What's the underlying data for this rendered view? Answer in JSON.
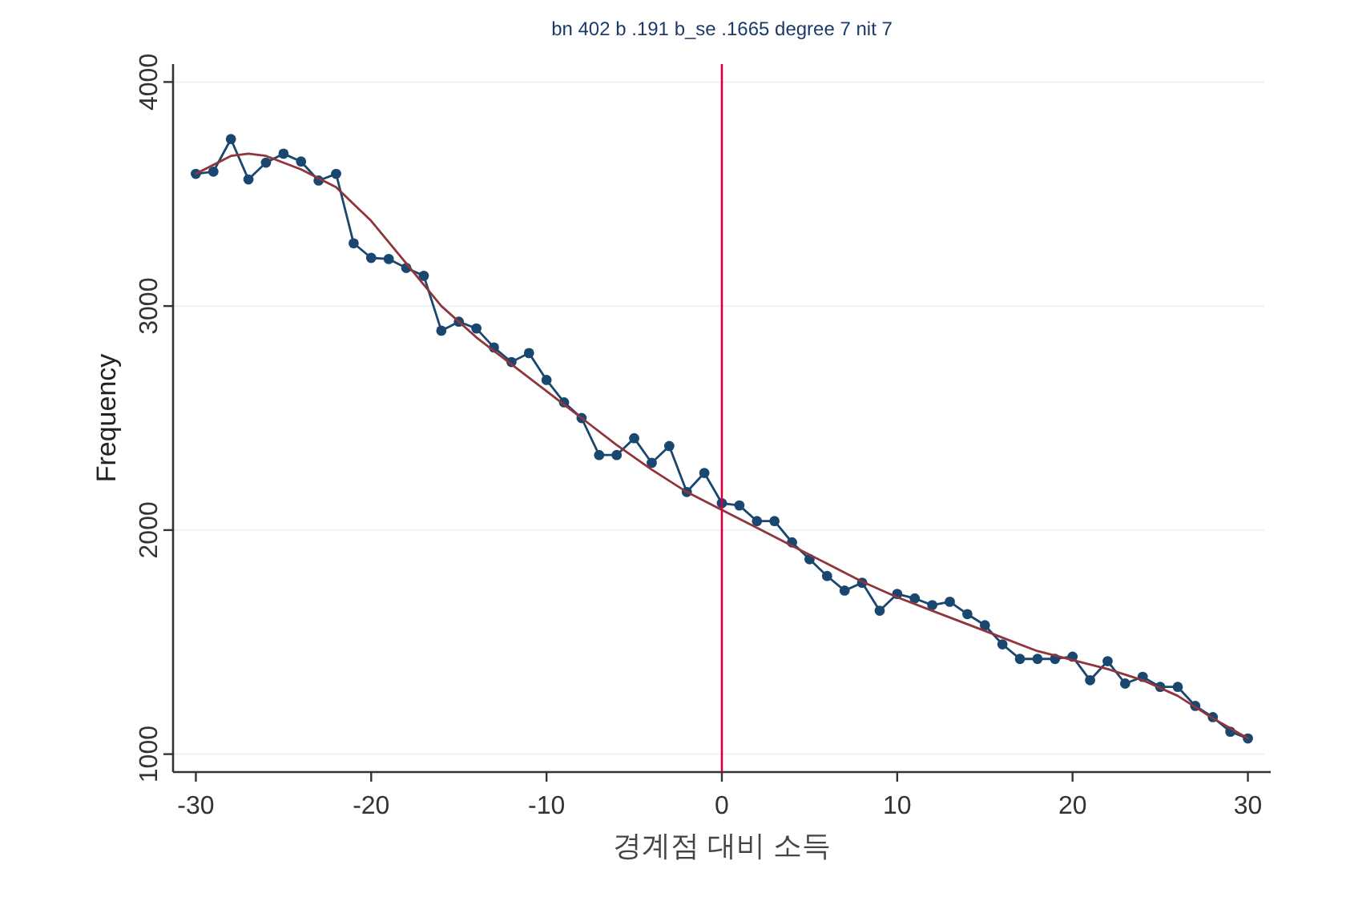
{
  "chart_data": {
    "type": "line",
    "title": "bn 402 b .191 b_se .1665 degree 7 nit 7",
    "xlabel": "경계점 대비 소득",
    "ylabel": "Frequency",
    "x": [
      -30,
      -29,
      -28,
      -27,
      -26,
      -25,
      -24,
      -23,
      -22,
      -21,
      -20,
      -19,
      -18,
      -17,
      -16,
      -15,
      -14,
      -13,
      -12,
      -11,
      -10,
      -9,
      -8,
      -7,
      -6,
      -5,
      -4,
      -3,
      -2,
      -1,
      0,
      1,
      2,
      3,
      4,
      5,
      6,
      7,
      8,
      9,
      10,
      11,
      12,
      13,
      14,
      15,
      16,
      17,
      18,
      19,
      20,
      21,
      22,
      23,
      24,
      25,
      26,
      27,
      28,
      29,
      30
    ],
    "series": [
      {
        "color": "#1a476f",
        "marker": "circle",
        "values": [
          3590,
          3600,
          3745,
          3565,
          3640,
          3680,
          3645,
          3560,
          3590,
          3280,
          3215,
          3210,
          3170,
          3135,
          2890,
          2930,
          2900,
          2815,
          2750,
          2790,
          2670,
          2570,
          2500,
          2335,
          2335,
          2410,
          2300,
          2375,
          2170,
          2255,
          2120,
          2110,
          2040,
          2040,
          1945,
          1870,
          1795,
          1730,
          1765,
          1640,
          1715,
          1695,
          1665,
          1680,
          1625,
          1575,
          1490,
          1425,
          1425,
          1425,
          1435,
          1330,
          1415,
          1315,
          1345,
          1300,
          1300,
          1215,
          1165,
          1100,
          1070
        ]
      },
      {
        "type": "line",
        "color": "#90353b",
        "marker": "none",
        "x": [
          -30,
          -28,
          -27,
          -26,
          -24,
          -22,
          -20,
          -18,
          -16,
          -14,
          -12,
          -10,
          -8,
          -6,
          -4,
          -2,
          0,
          2,
          4,
          6,
          8,
          10,
          12,
          14,
          16,
          18,
          20,
          22,
          24,
          26,
          28,
          30
        ],
        "values": [
          3590,
          3670,
          3680,
          3670,
          3610,
          3530,
          3380,
          3190,
          3000,
          2860,
          2740,
          2620,
          2500,
          2380,
          2270,
          2170,
          2090,
          2010,
          1930,
          1850,
          1770,
          1700,
          1640,
          1580,
          1520,
          1460,
          1420,
          1380,
          1330,
          1260,
          1160,
          1070
        ]
      }
    ],
    "xlim": [
      -31.3,
      31.3
    ],
    "ylim": [
      920,
      4080
    ],
    "xticks": [
      -30,
      -20,
      -10,
      0,
      10,
      20,
      30
    ],
    "yticks": [
      1000,
      2000,
      3000,
      4000
    ],
    "grid": "y",
    "ref_lines": [
      {
        "axis": "x",
        "value": 0,
        "color": "#d4003c"
      }
    ]
  }
}
